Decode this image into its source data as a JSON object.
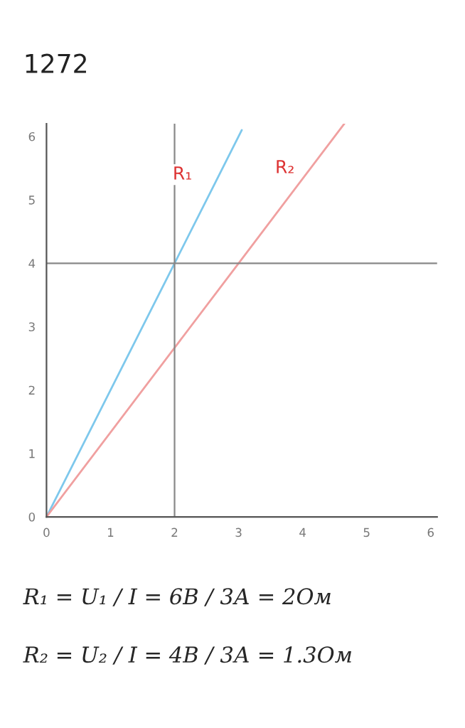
{
  "chart_data": {
    "type": "line",
    "title": "1272",
    "series": [
      {
        "name": "R₁",
        "color": "#7ec8ec",
        "x": [
          0,
          2,
          3.05
        ],
        "values": [
          0,
          4,
          6.1
        ]
      },
      {
        "name": "R₂",
        "color": "#f0a0a0",
        "x": [
          0,
          3,
          4.65
        ],
        "values": [
          0,
          4,
          6.2
        ]
      }
    ],
    "xlim": [
      0,
      6.1
    ],
    "ylim": [
      0,
      6.2
    ],
    "xticks": [
      0,
      1,
      2,
      3,
      4,
      5,
      6
    ],
    "yticks": [
      0,
      1,
      2,
      3,
      4,
      5,
      6
    ],
    "ref_lines": [
      {
        "axis": "x",
        "value": 2,
        "color": "#888888"
      },
      {
        "axis": "y",
        "value": 4,
        "color": "#888888"
      }
    ],
    "grid": false,
    "marker": "none",
    "line_style": "solid",
    "annotations": [
      "R₁ = U₁ / I = 6В / 3А = 2Ом",
      "R₂ = U₂ / I = 4В / 3А = 1.3Ом"
    ]
  }
}
